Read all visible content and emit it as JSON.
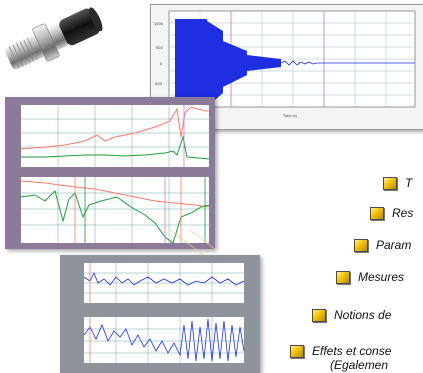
{
  "colors": {
    "signal_blue": "#1d2fe0",
    "bullet_gold": "#e8b800",
    "plot_grid": "#6aa8a0",
    "curve_red": "#ff7a6a",
    "curve_green": "#1f9e3a"
  },
  "icons": {
    "sensor": "sensor-photo-icon",
    "bullet": "bullet-square-icon"
  },
  "menu": {
    "items": [
      {
        "label": "T"
      },
      {
        "label": "Res"
      },
      {
        "label": "Param"
      },
      {
        "label": "Mesures"
      },
      {
        "label": "Notions de"
      },
      {
        "label": "Effets et conse"
      }
    ],
    "subline": "(Egalemen"
  }
}
